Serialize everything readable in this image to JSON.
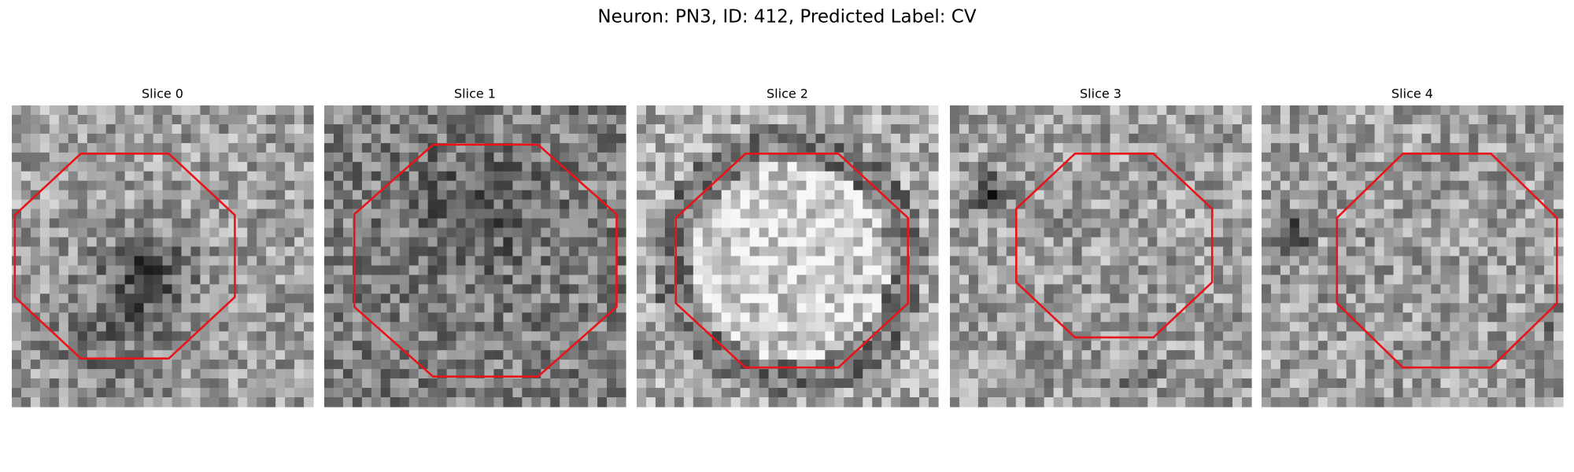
{
  "title": "Neuron: PN3, ID: 412, Predicted Label: CV",
  "panels": [
    {
      "title": "Slice 0"
    },
    {
      "title": "Slice 1"
    },
    {
      "title": "Slice 2"
    },
    {
      "title": "Slice 3"
    },
    {
      "title": "Slice 4"
    }
  ]
}
